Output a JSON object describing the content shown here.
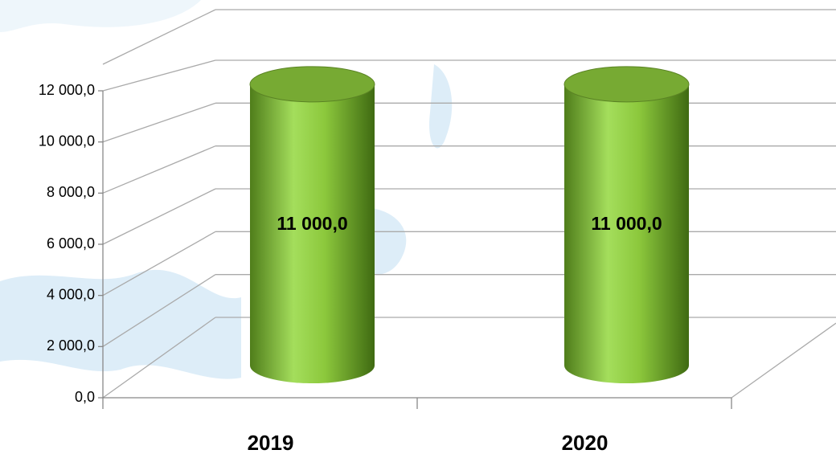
{
  "chart_data": {
    "type": "bar",
    "categories": [
      "2019",
      "2020"
    ],
    "values": [
      11000,
      11000
    ],
    "value_labels": [
      "11 000,0",
      "11 000,0"
    ],
    "color": "#8cc83c",
    "ylim": [
      0,
      12000
    ],
    "yticks": [
      {
        "value": 0,
        "label": "0,0"
      },
      {
        "value": 2000,
        "label": "2 000,0"
      },
      {
        "value": 4000,
        "label": "4 000,0"
      },
      {
        "value": 6000,
        "label": "6 000,0"
      },
      {
        "value": 8000,
        "label": "8 000,0"
      },
      {
        "value": 10000,
        "label": "10 000,0"
      },
      {
        "value": 12000,
        "label": "12 000,0"
      }
    ],
    "grid": true
  }
}
